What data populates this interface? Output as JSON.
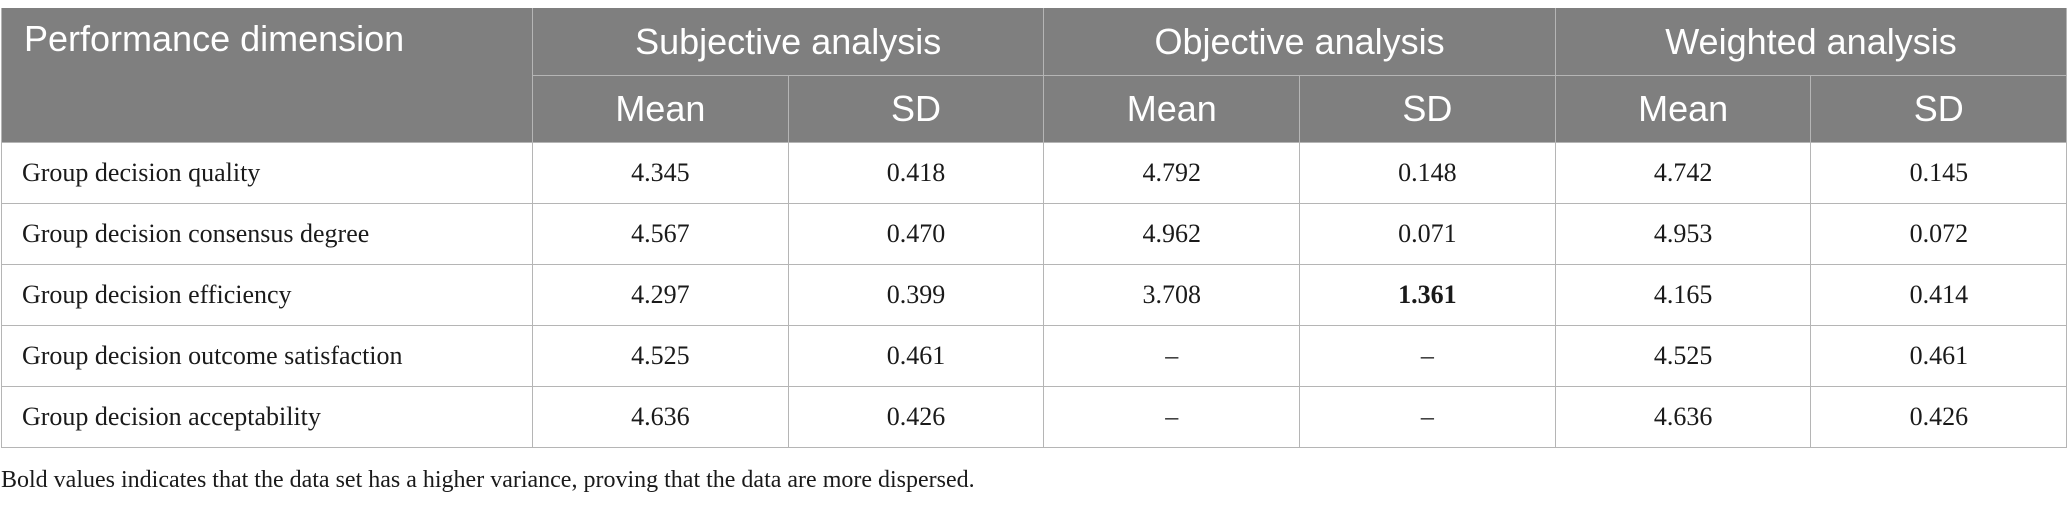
{
  "table": {
    "first_header": "Performance dimension",
    "groups": [
      "Subjective analysis",
      "Objective analysis",
      "Weighted analysis"
    ],
    "sub_headers": [
      "Mean",
      "SD",
      "Mean",
      "SD",
      "Mean",
      "SD"
    ],
    "rows": [
      {
        "label": "Group decision quality",
        "values": [
          "4.345",
          "0.418",
          "4.792",
          "0.148",
          "4.742",
          "0.145"
        ]
      },
      {
        "label": "Group decision consensus degree",
        "values": [
          "4.567",
          "0.470",
          "4.962",
          "0.071",
          "4.953",
          "0.072"
        ]
      },
      {
        "label": "Group decision efficiency",
        "values": [
          "4.297",
          "0.399",
          "3.708",
          "1.361",
          "4.165",
          "0.414"
        ]
      },
      {
        "label": "Group decision outcome satisfaction",
        "values": [
          "4.525",
          "0.461",
          "–",
          "–",
          "4.525",
          "0.461"
        ]
      },
      {
        "label": "Group decision acceptability",
        "values": [
          "4.636",
          "0.426",
          "–",
          "–",
          "4.636",
          "0.426"
        ]
      }
    ]
  },
  "footnote": "Bold values indicates that the data set has a higher variance, proving that the data are more dispersed."
}
